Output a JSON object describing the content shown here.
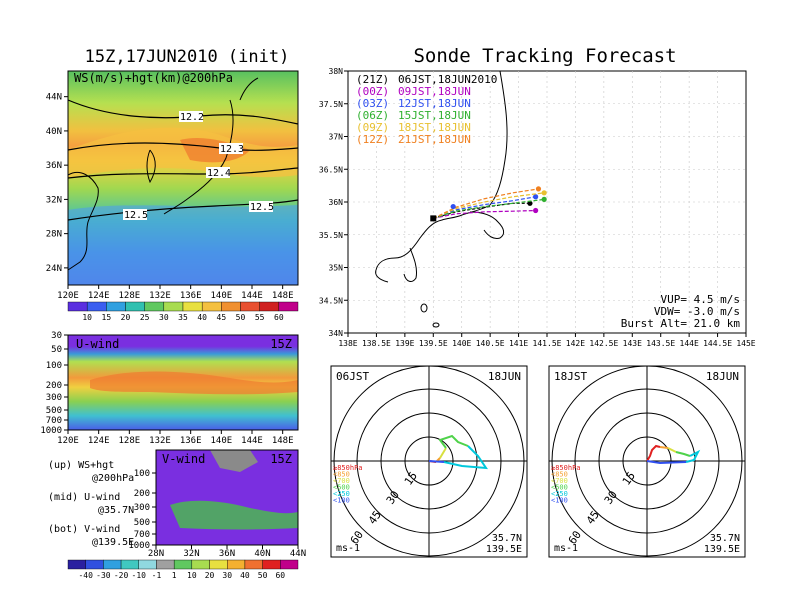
{
  "titles": {
    "left": "15Z,17JUN2010 (init)",
    "right": "Sonde Tracking Forecast"
  },
  "colors": {
    "frame": "#000000",
    "purple": "#8a2be2",
    "blue": "#3050f0",
    "cyan": "#00c8dc",
    "green": "#4fd24a",
    "yellow": "#d8e040",
    "orange": "#f5a030",
    "red": "#e02020",
    "gray": "#808080"
  },
  "map_panel": {
    "label": "WS(m/s)+hgt(km)@200hPa",
    "contour_labels": [
      "12.2",
      "12.3",
      "12.4",
      "12.5",
      "12.5"
    ],
    "colorbar_ticks": [
      "10",
      "15",
      "20",
      "25",
      "30",
      "35",
      "40",
      "45",
      "50",
      "55",
      "60"
    ]
  },
  "u_panel": {
    "label": "U-wind",
    "time": "15Z"
  },
  "v_panel": {
    "label": "V-wind",
    "time": "15Z",
    "colorbar_ticks": [
      "-40",
      "-30",
      "-20",
      "-10",
      "-1",
      "1",
      "10",
      "20",
      "30",
      "40",
      "50",
      "60"
    ]
  },
  "captions": {
    "up": "(up) WS+hgt",
    "up_sub": "@200hPa",
    "mid": "(mid) U-wind",
    "mid_sub": "@35.7N",
    "bot": "(bot) V-wind",
    "bot_sub": "@139.5E"
  },
  "track_panel": {
    "legend": [
      {
        "run": "(21Z)",
        "valid": "06JST,18JUN2010",
        "color": "#000000"
      },
      {
        "run": "(00Z)",
        "valid": "09JST,18JUN",
        "color": "#b000c0"
      },
      {
        "run": "(03Z)",
        "valid": "12JST,18JUN",
        "color": "#3050f0"
      },
      {
        "run": "(06Z)",
        "valid": "15JST,18JUN",
        "color": "#30b030"
      },
      {
        "run": "(09Z)",
        "valid": "18JST,18JUN",
        "color": "#e8c030"
      },
      {
        "run": "(12Z)",
        "valid": "21JST,18JUN",
        "color": "#f08020"
      }
    ],
    "params": [
      "VUP= 4.5 m/s",
      "VDW= -3.0 m/s",
      "Burst Alt= 21.0 km"
    ]
  },
  "hodo_left": {
    "time": "06JST",
    "date": "18JUN",
    "ring_labels": [
      "15",
      "30",
      "45",
      "60"
    ],
    "unit": "ms-1",
    "lat": "35.7N",
    "lon": "139.5E"
  },
  "hodo_right": {
    "time": "18JST",
    "date": "18JUN",
    "ring_labels": [
      "15",
      "30",
      "45",
      "60"
    ],
    "unit": "ms-1",
    "lat": "35.7N",
    "lon": "139.5E"
  },
  "level_legend": [
    {
      "label": "≥850hPa",
      "color": "#e02020"
    },
    {
      "label": "<850",
      "color": "#f5a030"
    },
    {
      "label": "<700",
      "color": "#d8e040"
    },
    {
      "label": "<500",
      "color": "#4fd24a"
    },
    {
      "label": "<250",
      "color": "#00c8dc"
    },
    {
      "label": "<100",
      "color": "#3050f0"
    }
  ],
  "chart_data": [
    {
      "type": "heatmap",
      "title": "WS(m/s)+hgt(km)@200hPa",
      "x_ticks": [
        "120E",
        "124E",
        "128E",
        "132E",
        "136E",
        "140E",
        "144E",
        "148E"
      ],
      "y_ticks": [
        "24N",
        "28N",
        "32N",
        "36N",
        "40N",
        "44N"
      ],
      "xlim": [
        120,
        150
      ],
      "ylim": [
        22,
        47
      ],
      "colorbar": [
        10,
        15,
        20,
        25,
        30,
        35,
        40,
        45,
        50,
        55,
        60
      ]
    },
    {
      "type": "heatmap",
      "title": "U-wind",
      "x_ticks": [
        "120E",
        "124E",
        "128E",
        "132E",
        "136E",
        "140E",
        "144E",
        "148E"
      ],
      "y_ticks": [
        "30",
        "50",
        "100",
        "200",
        "300",
        "500",
        "700",
        "1000"
      ],
      "xlim": [
        120,
        150
      ]
    },
    {
      "type": "heatmap",
      "title": "V-wind",
      "x_ticks": [
        "28N",
        "32N",
        "36N",
        "40N",
        "44N"
      ],
      "y_ticks": [
        "100",
        "200",
        "300",
        "500",
        "700",
        "1000"
      ],
      "colorbar": [
        -40,
        -30,
        -20,
        -10,
        -1,
        1,
        10,
        20,
        30,
        40,
        50,
        60
      ]
    },
    {
      "type": "line",
      "title": "Sonde Tracking Forecast",
      "x_ticks": [
        "138E",
        "138.5E",
        "139E",
        "139.5E",
        "140E",
        "140.5E",
        "141E",
        "141.5E",
        "142E",
        "142.5E",
        "143E",
        "143.5E",
        "144E",
        "144.5E",
        "145E"
      ],
      "y_ticks": [
        "34N",
        "34.5N",
        "35N",
        "35.5N",
        "36N",
        "36.5N",
        "37N",
        "37.5N",
        "38N"
      ],
      "xlim": [
        138,
        145
      ],
      "ylim": [
        34,
        38
      ],
      "series": [
        {
          "name": "(21Z) 06JST,18JUN2010",
          "color": "#000000",
          "x": [
            139.5,
            139.9,
            140.4,
            140.9,
            141.2
          ],
          "y": [
            35.75,
            35.85,
            35.92,
            35.98,
            35.98
          ]
        },
        {
          "name": "(00Z) 09JST,18JUN",
          "color": "#b000c0",
          "x": [
            139.5,
            139.9,
            140.4,
            140.9,
            141.3
          ],
          "y": [
            35.75,
            35.82,
            35.85,
            35.86,
            35.87
          ]
        },
        {
          "name": "(03Z) 12JST,18JUN",
          "color": "#3050f0",
          "x": [
            139.5,
            139.9,
            140.4,
            140.9,
            141.3
          ],
          "y": [
            35.75,
            35.88,
            35.96,
            36.02,
            36.08
          ]
        },
        {
          "name": "(06Z) 15JST,18JUN",
          "color": "#30b030",
          "x": [
            139.5,
            139.9,
            140.4,
            140.9,
            141.45
          ],
          "y": [
            35.75,
            35.86,
            35.93,
            35.98,
            36.04
          ]
        },
        {
          "name": "(09Z) 18JST,18JUN",
          "color": "#e8c030",
          "x": [
            139.5,
            139.9,
            140.4,
            140.9,
            141.45
          ],
          "y": [
            35.75,
            35.9,
            36.0,
            36.08,
            36.14
          ]
        },
        {
          "name": "(12Z) 21JST,18JUN",
          "color": "#f08020",
          "x": [
            139.5,
            139.9,
            140.4,
            140.9,
            141.35
          ],
          "y": [
            35.75,
            35.92,
            36.05,
            36.14,
            36.2
          ]
        }
      ]
    }
  ]
}
